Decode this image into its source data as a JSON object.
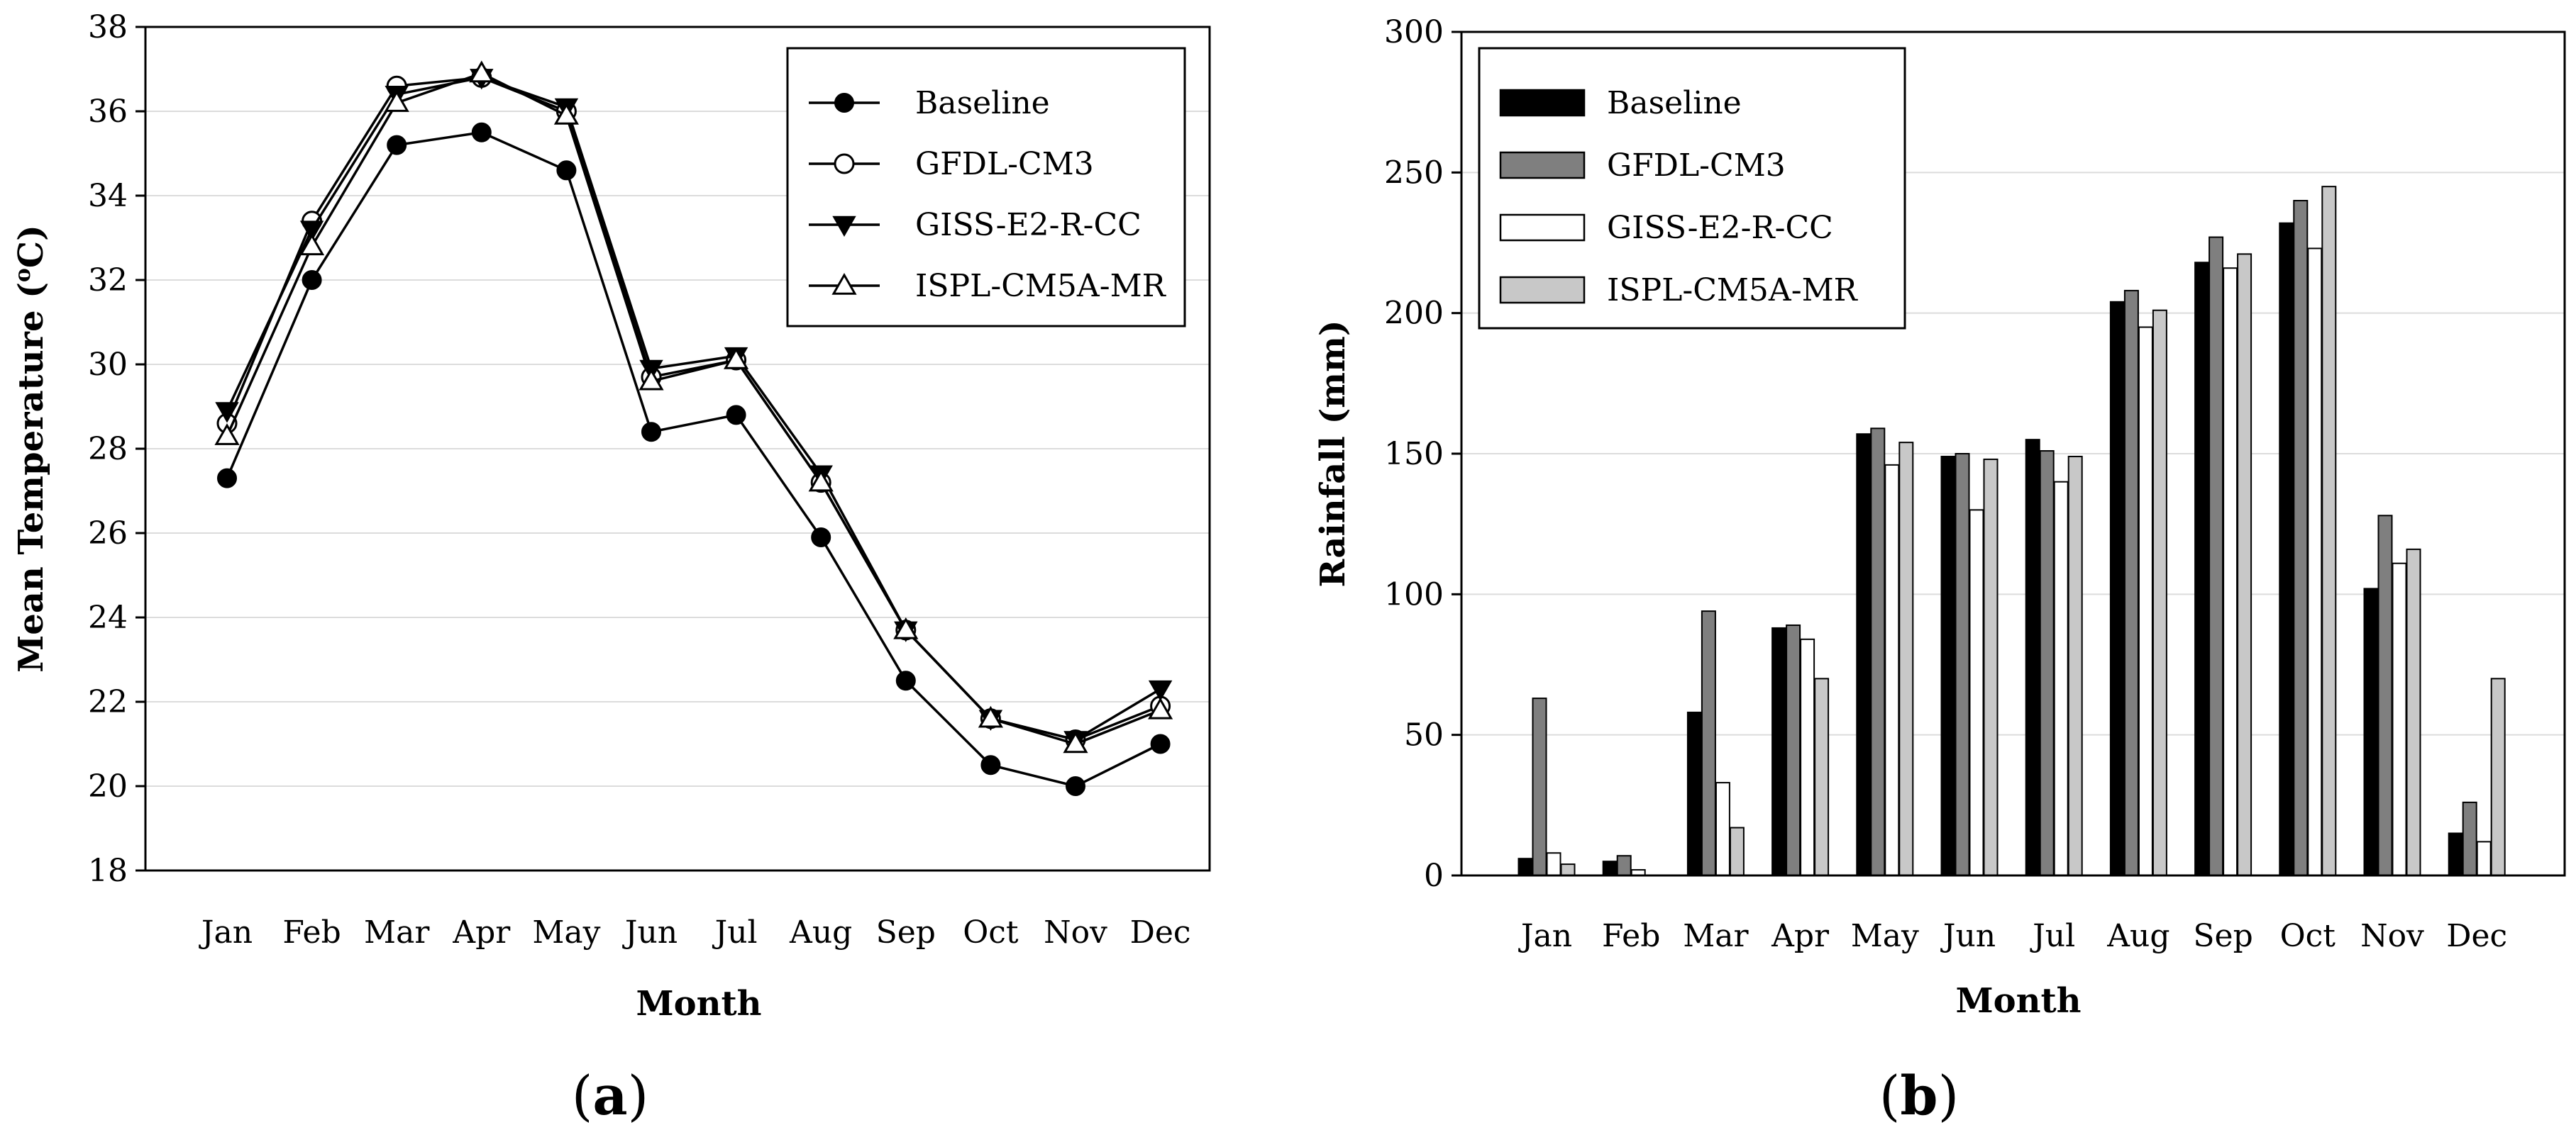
{
  "chart_data": [
    {
      "panel": "(a)",
      "panel_letter": "a",
      "type": "line",
      "title": "",
      "xlabel": "Month",
      "ylabel": "Mean Temperature (",
      "ylabel_sup": "o",
      "ylabel_unit": "C)",
      "ylim": [
        18,
        38
      ],
      "yticks": [
        18,
        20,
        22,
        24,
        26,
        28,
        30,
        32,
        34,
        36,
        38
      ],
      "grid": true,
      "legend_position": "top-right",
      "categories": [
        "Jan",
        "Feb",
        "Mar",
        "Apr",
        "May",
        "Jun",
        "Jul",
        "Aug",
        "Sep",
        "Oct",
        "Nov",
        "Dec"
      ],
      "series": [
        {
          "name": "Baseline",
          "marker": "filled-circle",
          "values": [
            27.3,
            32.0,
            35.2,
            35.5,
            34.6,
            28.4,
            28.8,
            25.9,
            22.5,
            20.5,
            20.0,
            21.0
          ]
        },
        {
          "name": "GFDL-CM3",
          "marker": "open-circle",
          "values": [
            28.6,
            33.4,
            36.6,
            36.8,
            36.0,
            29.7,
            30.1,
            27.2,
            23.7,
            21.6,
            21.1,
            21.9
          ]
        },
        {
          "name": "GISS-E2-R-CC",
          "marker": "filled-triangle-down",
          "values": [
            28.9,
            33.2,
            36.4,
            36.8,
            36.1,
            29.9,
            30.2,
            27.4,
            23.7,
            21.6,
            21.1,
            22.3
          ]
        },
        {
          "name": "ISPL-CM5A-MR",
          "marker": "open-triangle-up",
          "values": [
            28.3,
            32.8,
            36.2,
            36.9,
            35.9,
            29.6,
            30.1,
            27.2,
            23.7,
            21.6,
            21.0,
            21.8
          ]
        }
      ]
    },
    {
      "panel": "(b)",
      "panel_letter": "b",
      "type": "bar",
      "title": "",
      "xlabel": "Month",
      "ylabel": "Rainfall (mm)",
      "ylim": [
        0,
        300
      ],
      "yticks": [
        0,
        50,
        100,
        150,
        200,
        250,
        300
      ],
      "grid": true,
      "legend_position": "top-left",
      "categories": [
        "Jan",
        "Feb",
        "Mar",
        "Apr",
        "May",
        "Jun",
        "Jul",
        "Aug",
        "Sep",
        "Oct",
        "Nov",
        "Dec"
      ],
      "series": [
        {
          "name": "Baseline",
          "color": "#000000",
          "values": [
            6,
            5,
            58,
            88,
            157,
            149,
            155,
            204,
            218,
            232,
            102,
            15
          ]
        },
        {
          "name": "GFDL-CM3",
          "color": "#7f7f7f",
          "values": [
            63,
            7,
            94,
            89,
            159,
            150,
            151,
            208,
            227,
            240,
            128,
            26
          ]
        },
        {
          "name": "GISS-E2-R-CC",
          "color": "#ffffff",
          "values": [
            8,
            2,
            33,
            84,
            146,
            130,
            140,
            195,
            216,
            223,
            111,
            12
          ]
        },
        {
          "name": "ISPL-CM5A-MR",
          "color": "#c8c8c8",
          "values": [
            4,
            0,
            17,
            70,
            154,
            148,
            149,
            201,
            221,
            245,
            116,
            70
          ]
        }
      ]
    }
  ]
}
